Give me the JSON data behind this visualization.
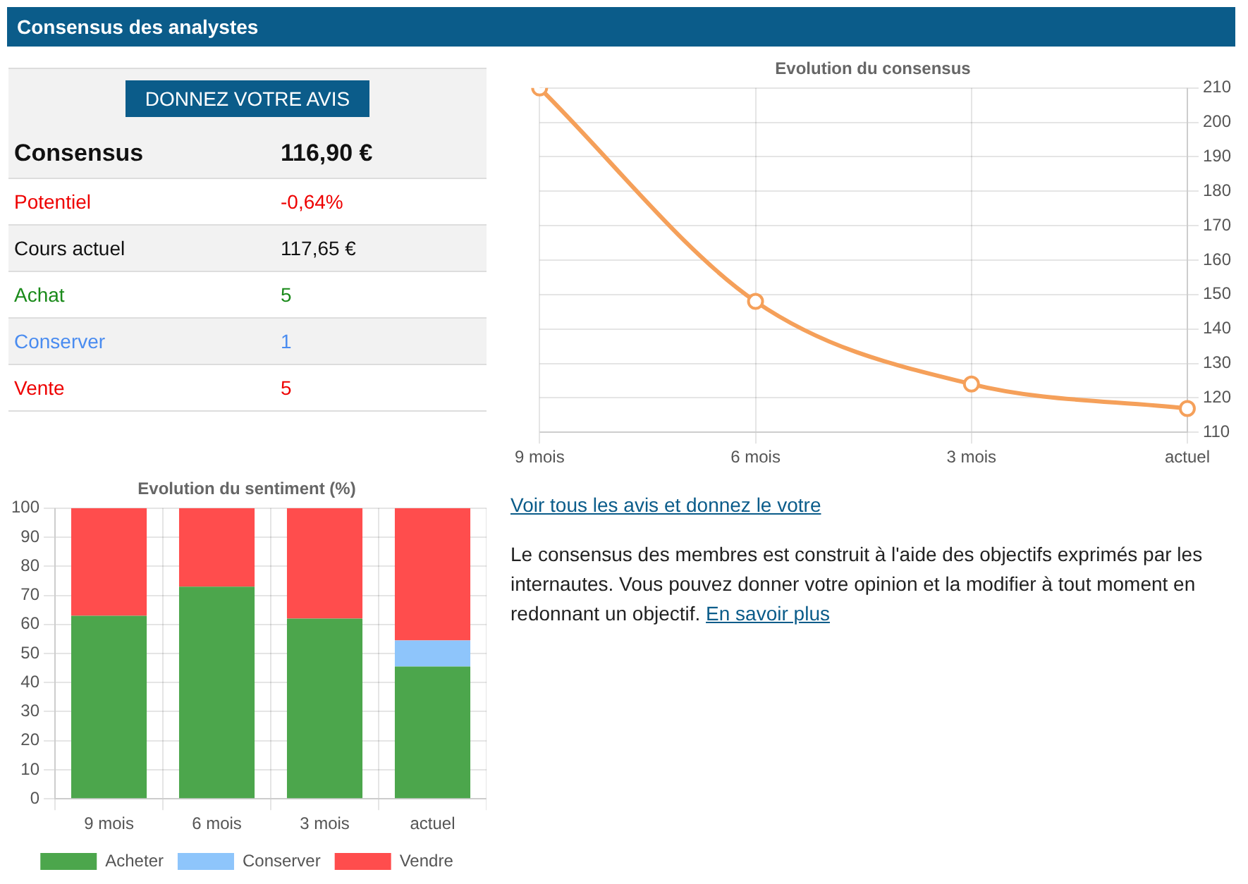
{
  "chart_data": [
    {
      "type": "other",
      "title": "Consensus des analystes",
      "annotations": [
        "DONNEZ VOTRE AVIS",
        "Consensus",
        "116,90 €",
        "Potentiel",
        "-0,64%",
        "Cours actuel",
        "117,65 €",
        "Achat",
        "5",
        "Conserver",
        "1",
        "Vente",
        "5"
      ]
    },
    {
      "type": "line",
      "title": "Evolution du consensus",
      "categories": [
        "9 mois",
        "6 mois",
        "3 mois",
        "actuel"
      ],
      "series": [
        {
          "color": "#f5a05a",
          "values": [
            210,
            148,
            124,
            116.9
          ]
        }
      ],
      "ylim": [
        110,
        210
      ],
      "yticks": [
        110,
        120,
        130,
        140,
        150,
        160,
        170,
        180,
        190,
        200,
        210
      ],
      "grid": true,
      "legend": false,
      "marker": "circle",
      "line_style": "solid",
      "annotations": [
        "Voir tous les avis et donnez le votre",
        "Le consensus des membres est construit à l'aide des objectifs exprimés par les internautes. Vous pouvez donner votre opinion et la modifier à tout moment en redonnant un objectif.",
        "En savoir plus"
      ]
    },
    {
      "type": "bar",
      "title": "Evolution du sentiment (%)",
      "categories": [
        "9 mois",
        "6 mois",
        "3 mois",
        "actuel"
      ],
      "stacked": true,
      "series": [
        {
          "name": "Acheter",
          "color": "#4ca64c",
          "values": [
            63,
            73,
            62,
            45.5
          ]
        },
        {
          "name": "Conserver",
          "color": "#8ec5fb",
          "values": [
            0,
            0,
            0,
            9
          ]
        },
        {
          "name": "Vendre",
          "color": "#ff4d4d",
          "values": [
            37,
            27,
            38,
            45.5
          ]
        }
      ],
      "ylim": [
        0,
        100
      ],
      "yticks": [
        0,
        10,
        20,
        30,
        40,
        50,
        60,
        70,
        80,
        90,
        100
      ],
      "grid": true,
      "legend": "bottom"
    }
  ]
}
